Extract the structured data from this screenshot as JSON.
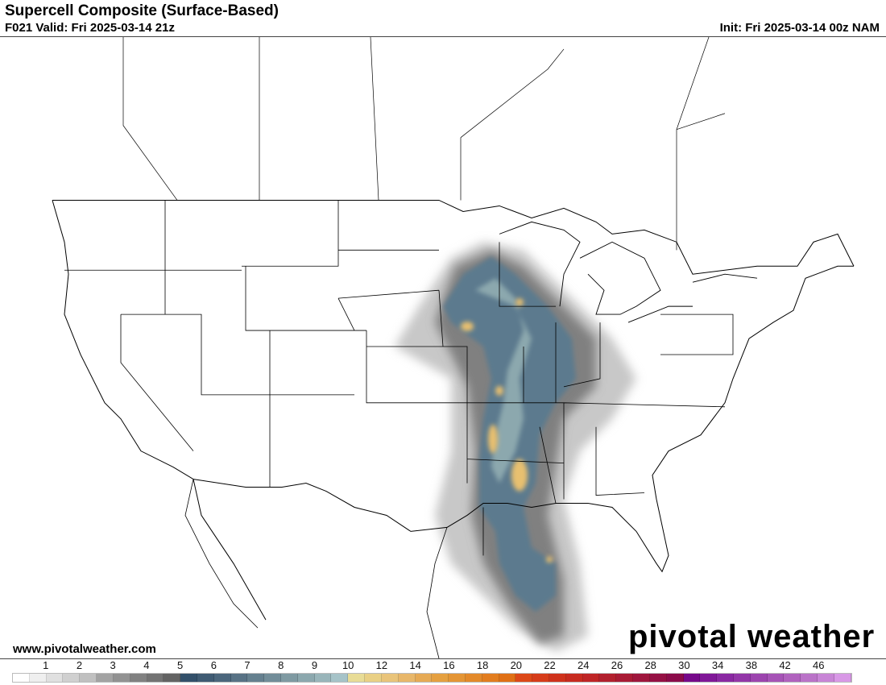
{
  "header": {
    "title": "Supercell Composite (Surface-Based)",
    "valid": "F021 Valid: Fri 2025-03-14 21z",
    "init": "Init: Fri 2025-03-14 00z NAM"
  },
  "footer": {
    "website": "www.pivotalweather.com",
    "logo_text": "pivotal weather"
  },
  "colorbar": {
    "labels": [
      "1",
      "2",
      "3",
      "4",
      "5",
      "6",
      "7",
      "8",
      "9",
      "10",
      "12",
      "14",
      "16",
      "18",
      "20",
      "22",
      "24",
      "26",
      "28",
      "30",
      "34",
      "38",
      "42",
      "46"
    ],
    "colors": [
      "#ffffff",
      "#efefef",
      "#e0e0e0",
      "#d0d0d0",
      "#c0c0c0",
      "#a3a3a3",
      "#929292",
      "#818181",
      "#737373",
      "#636363",
      "#33506a",
      "#3f5b73",
      "#4b667c",
      "#587285",
      "#65808f",
      "#728d99",
      "#7f9aa2",
      "#8ca8ae",
      "#99b5ba",
      "#a6c3c8",
      "#e8dc96",
      "#e9d085",
      "#e9c47a",
      "#e8b76a",
      "#e6aa55",
      "#e5a040",
      "#e49535",
      "#e3892a",
      "#e27d1f",
      "#e07015",
      "#dc4818",
      "#d63c1a",
      "#cf321c",
      "#c72b20",
      "#bf2526",
      "#b2202e",
      "#a91b35",
      "#9f163d",
      "#951044",
      "#8b0b4a",
      "#76098a",
      "#801898",
      "#8a28a2",
      "#9336a8",
      "#9c44ae",
      "#a653b6",
      "#b062be",
      "#ba73c8",
      "#c885d6",
      "#d898e6"
    ]
  }
}
